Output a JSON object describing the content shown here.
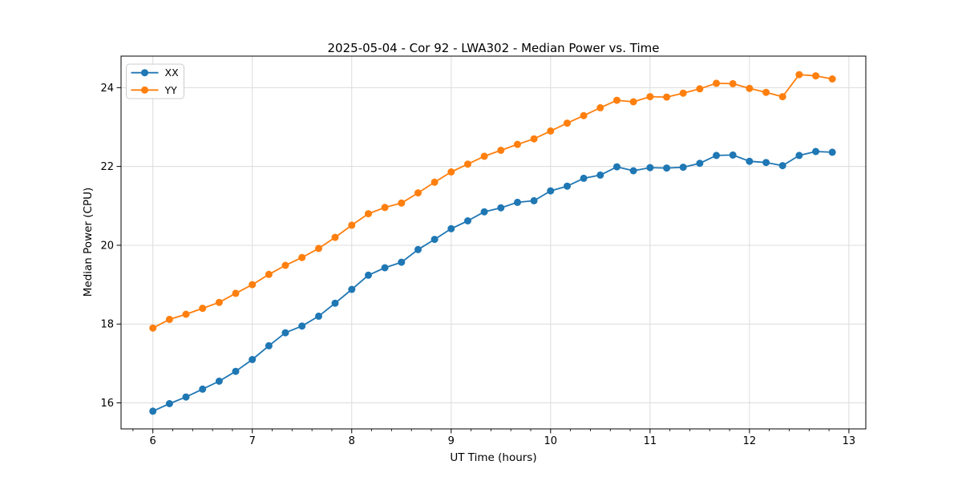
{
  "figure": {
    "kind": "matplotlib-style line chart"
  },
  "chart_data": {
    "type": "line",
    "title": "2025-05-04 - Cor 92 - LWA302 - Median Power vs. Time",
    "xlabel": "UT Time (hours)",
    "ylabel": "Median Power (CPU)",
    "xlim": [
      5.68,
      13.17
    ],
    "ylim": [
      15.34,
      24.8
    ],
    "x_ticks": [
      6,
      7,
      8,
      9,
      10,
      11,
      12,
      13
    ],
    "y_ticks": [
      16,
      18,
      20,
      22,
      24
    ],
    "x_minor_tick_step": 0.2,
    "grid": true,
    "grid_color": "#dcdcdc",
    "spine_color": "#000000",
    "tick_label_color": "#000000",
    "legend_position": "upper-left",
    "x": [
      6.0,
      6.167,
      6.333,
      6.5,
      6.667,
      6.833,
      7.0,
      7.167,
      7.333,
      7.5,
      7.667,
      7.833,
      8.0,
      8.167,
      8.333,
      8.5,
      8.667,
      8.833,
      9.0,
      9.167,
      9.333,
      9.5,
      9.667,
      9.833,
      10.0,
      10.167,
      10.333,
      10.5,
      10.667,
      10.833,
      11.0,
      11.167,
      11.333,
      11.5,
      11.667,
      11.833,
      12.0,
      12.167,
      12.333,
      12.5,
      12.667,
      12.833
    ],
    "series": [
      {
        "name": "XX",
        "color": "#1f77b4",
        "values": [
          15.79,
          15.98,
          16.15,
          16.35,
          16.55,
          16.8,
          17.1,
          17.45,
          17.78,
          17.95,
          18.2,
          18.53,
          18.88,
          19.24,
          19.43,
          19.57,
          19.89,
          20.15,
          20.42,
          20.62,
          20.85,
          20.95,
          21.09,
          21.13,
          21.38,
          21.5,
          21.7,
          21.78,
          21.99,
          21.89,
          21.97,
          21.96,
          21.98,
          22.08,
          22.28,
          22.29,
          22.13,
          22.1,
          22.02,
          22.28,
          22.38,
          22.36
        ]
      },
      {
        "name": "YY",
        "color": "#ff7f0e",
        "values": [
          17.9,
          18.12,
          18.25,
          18.4,
          18.55,
          18.78,
          19.0,
          19.26,
          19.49,
          19.69,
          19.92,
          20.2,
          20.51,
          20.8,
          20.96,
          21.07,
          21.33,
          21.6,
          21.86,
          22.06,
          22.26,
          22.41,
          22.56,
          22.7,
          22.9,
          23.1,
          23.29,
          23.49,
          23.68,
          23.64,
          23.77,
          23.76,
          23.86,
          23.97,
          24.11,
          24.1,
          23.98,
          23.88,
          23.77,
          24.33,
          24.3,
          24.22
        ]
      }
    ]
  }
}
